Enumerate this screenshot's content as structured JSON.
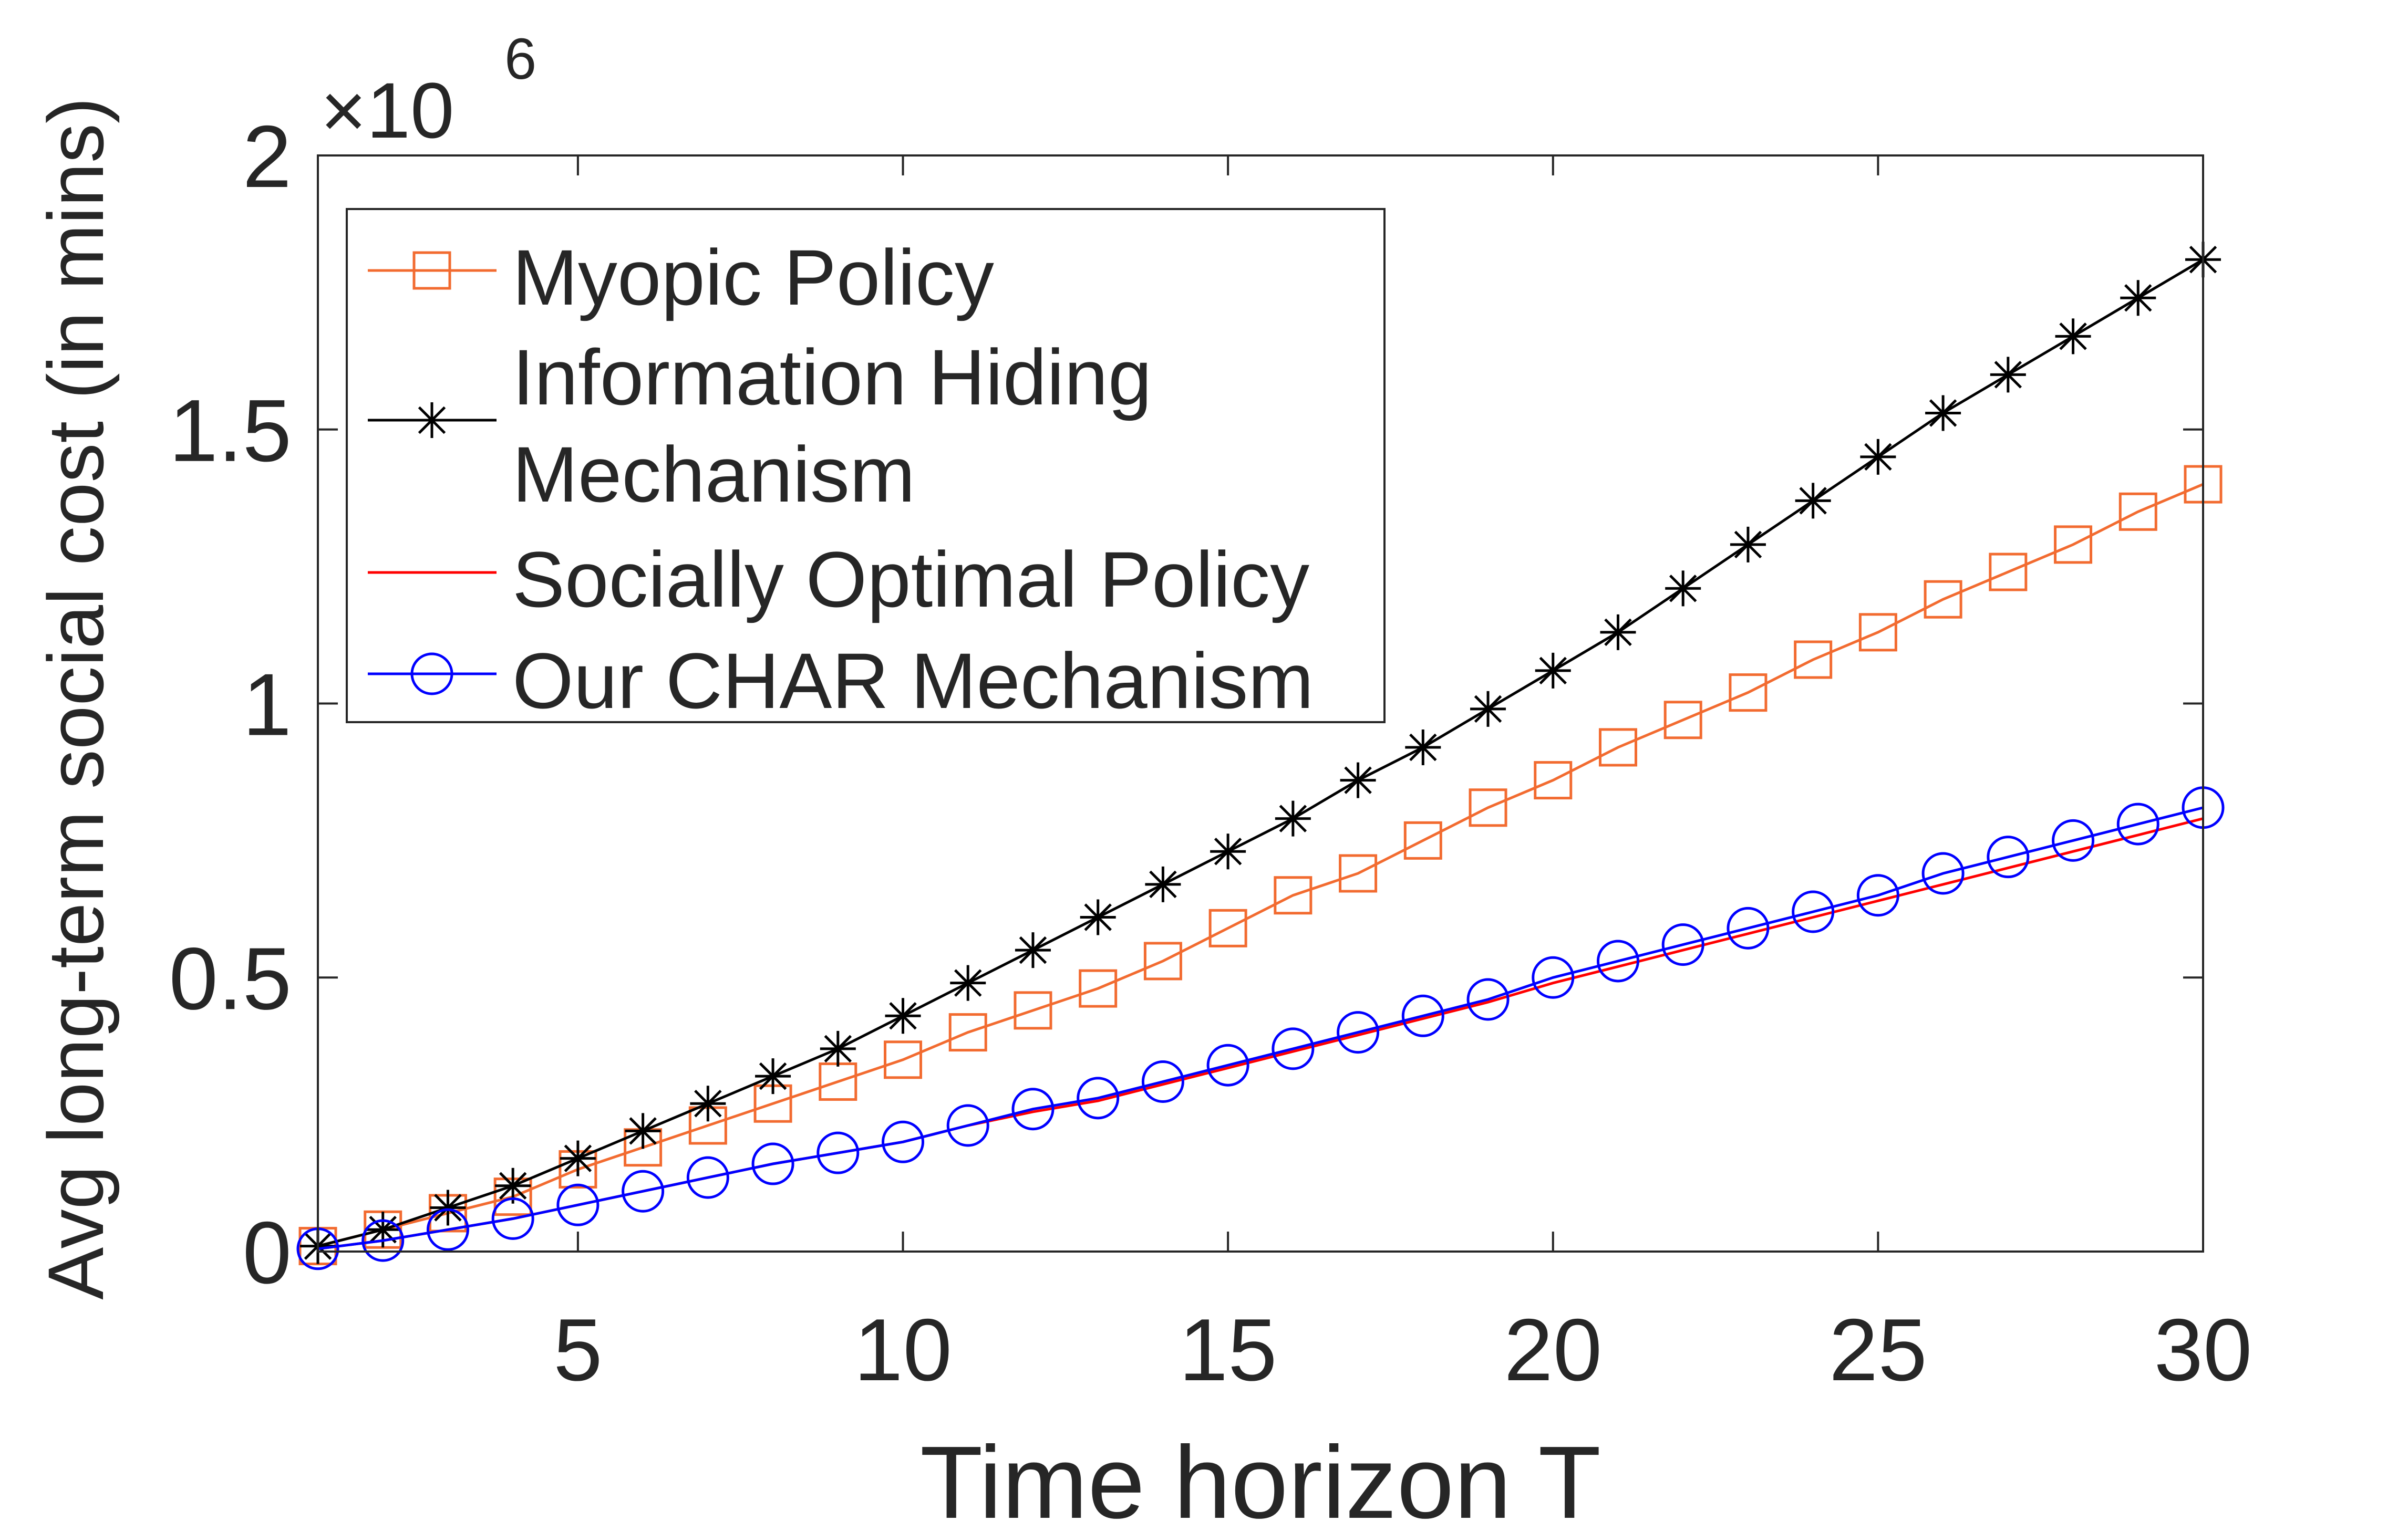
{
  "chart_data": {
    "type": "line",
    "title": "",
    "xlabel": "Time horizon T",
    "ylabel": "Avg long-term social cost (in mins)",
    "xlim": [
      1,
      30
    ],
    "ylim": [
      0,
      2
    ],
    "y_multiplier_label": "×10",
    "y_multiplier_exponent": "6",
    "x_ticks": [
      5,
      10,
      15,
      20,
      25,
      30
    ],
    "x_tick_labels": [
      "5",
      "10",
      "15",
      "20",
      "25",
      "30"
    ],
    "y_ticks": [
      0,
      0.5,
      1,
      1.5,
      2
    ],
    "y_tick_labels": [
      "0",
      "0.5",
      "1",
      "1.5",
      "2"
    ],
    "legend_position": "top-left",
    "x": [
      1,
      2,
      3,
      4,
      5,
      6,
      7,
      8,
      9,
      10,
      11,
      12,
      13,
      14,
      15,
      16,
      17,
      18,
      19,
      20,
      21,
      22,
      23,
      24,
      25,
      26,
      27,
      28,
      29,
      30
    ],
    "series": [
      {
        "name": "Myopic Policy",
        "legend_lines": [
          "Myopic Policy"
        ],
        "color": "#F26B30",
        "marker": "square",
        "values": [
          0.01,
          0.04,
          0.07,
          0.1,
          0.15,
          0.19,
          0.23,
          0.27,
          0.31,
          0.35,
          0.4,
          0.44,
          0.48,
          0.53,
          0.59,
          0.65,
          0.69,
          0.75,
          0.81,
          0.86,
          0.92,
          0.97,
          1.02,
          1.08,
          1.13,
          1.19,
          1.24,
          1.29,
          1.35,
          1.4
        ]
      },
      {
        "name": "Information Hiding Mechanism",
        "legend_lines": [
          "Information Hiding",
          "Mechanism"
        ],
        "color": "#000000",
        "marker": "asterisk",
        "values": [
          0.01,
          0.04,
          0.08,
          0.12,
          0.17,
          0.22,
          0.27,
          0.32,
          0.37,
          0.43,
          0.49,
          0.55,
          0.61,
          0.67,
          0.73,
          0.79,
          0.86,
          0.92,
          0.99,
          1.06,
          1.13,
          1.21,
          1.29,
          1.37,
          1.45,
          1.53,
          1.6,
          1.67,
          1.74,
          1.81
        ]
      },
      {
        "name": "Socially Optimal Policy",
        "legend_lines": [
          "Socially Optimal Policy"
        ],
        "color": "#FF0000",
        "marker": "none",
        "values": [
          0.005,
          0.02,
          0.04,
          0.06,
          0.085,
          0.11,
          0.135,
          0.16,
          0.18,
          0.2,
          0.23,
          0.255,
          0.275,
          0.305,
          0.335,
          0.365,
          0.395,
          0.425,
          0.455,
          0.49,
          0.52,
          0.55,
          0.58,
          0.61,
          0.64,
          0.67,
          0.7,
          0.73,
          0.76,
          0.79
        ]
      },
      {
        "name": "Our CHAR Mechanism",
        "legend_lines": [
          "Our CHAR Mechanism"
        ],
        "color": "#0000FF",
        "marker": "circle",
        "values": [
          0.005,
          0.02,
          0.04,
          0.06,
          0.085,
          0.11,
          0.135,
          0.16,
          0.18,
          0.2,
          0.23,
          0.26,
          0.28,
          0.31,
          0.34,
          0.37,
          0.4,
          0.43,
          0.46,
          0.5,
          0.53,
          0.56,
          0.59,
          0.62,
          0.65,
          0.69,
          0.72,
          0.75,
          0.78,
          0.81
        ]
      }
    ]
  }
}
